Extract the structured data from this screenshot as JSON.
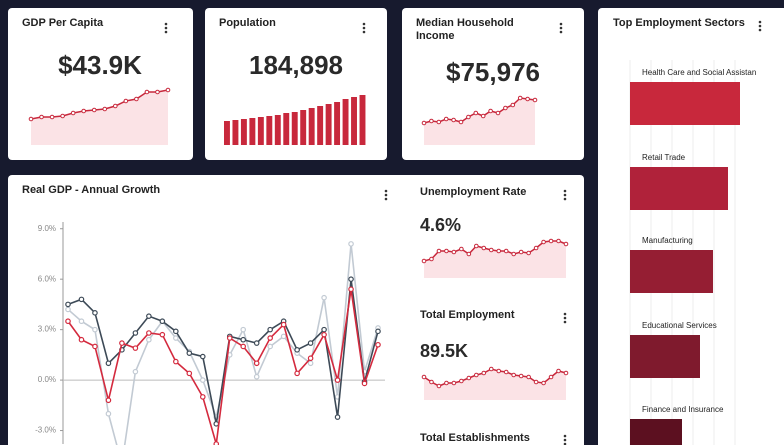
{
  "chart_data": [
    {
      "type": "line",
      "title": "GDP Per Capita",
      "headline": "$43.9K",
      "color": "#c8283c",
      "values": [
        31,
        33,
        33,
        34,
        37,
        39,
        40,
        41,
        44,
        49,
        51,
        58,
        58,
        60
      ]
    },
    {
      "type": "bar",
      "title": "Population",
      "headline": "184,898",
      "color": "#c8283c",
      "values": [
        24,
        25,
        26,
        27,
        28,
        29,
        30,
        32,
        33,
        35,
        37,
        39,
        41,
        43,
        46,
        48,
        50
      ]
    },
    {
      "type": "line",
      "title": "Median Household Income",
      "headline": "$75,976",
      "color": "#c8283c",
      "values": [
        27,
        29,
        28,
        31,
        30,
        28,
        33,
        37,
        34,
        39,
        37,
        42,
        45,
        52,
        51,
        50
      ]
    },
    {
      "type": "hbar",
      "title": "Top Employment Sectors",
      "categories": [
        "Health Care and Social Assistan",
        "Retail Trade",
        "Manufacturing",
        "Educational Services",
        "Finance and Insurance"
      ],
      "values": [
        110,
        98,
        83,
        70,
        52
      ],
      "colors": [
        "#c8283c",
        "#b0223a",
        "#951e33",
        "#7f1a2d",
        "#5c1020"
      ]
    },
    {
      "type": "multiline",
      "title": "Real GDP - Annual Growth",
      "ylim": [
        -3.8,
        9.4
      ],
      "yticks": [
        {
          "value": 9,
          "label": "9.0%"
        },
        {
          "value": 6,
          "label": "6.0%"
        },
        {
          "value": 3,
          "label": "3.0%"
        },
        {
          "value": 0,
          "label": "0.0%"
        },
        {
          "value": -3,
          "label": "-3.0%"
        }
      ],
      "series": [
        {
          "color": "#c2cad3",
          "values": [
            4.2,
            3.5,
            3.0,
            -2.0,
            -5.0,
            0.5,
            2.4,
            3.5,
            2.5,
            1.7,
            0.0,
            -2.2,
            1.5,
            3.0,
            0.2,
            2.0,
            2.6,
            1.6,
            1.0,
            4.9,
            -1.0,
            8.1,
            0.5,
            3.1
          ]
        },
        {
          "color": "#3d4a57",
          "values": [
            4.5,
            4.8,
            4.0,
            1.0,
            1.8,
            2.8,
            3.8,
            3.5,
            2.9,
            1.6,
            1.4,
            -2.6,
            2.6,
            2.4,
            2.2,
            3.0,
            3.5,
            1.8,
            2.2,
            3.0,
            -2.2,
            6.0,
            -0.1,
            2.9
          ]
        },
        {
          "color": "#d42a3e",
          "values": [
            3.5,
            2.4,
            2.0,
            -1.2,
            2.2,
            1.9,
            2.8,
            2.7,
            1.1,
            0.4,
            -1.0,
            -3.8,
            2.5,
            2.0,
            1.0,
            2.5,
            3.3,
            0.4,
            1.3,
            2.7,
            0.0,
            5.4,
            -0.2,
            2.1
          ]
        }
      ]
    },
    {
      "type": "line",
      "title": "Unemployment Rate",
      "headline": "4.6%",
      "color": "#c8283c",
      "values": [
        19,
        21,
        29,
        29,
        28,
        31,
        26,
        34,
        32,
        30,
        29,
        29,
        26,
        28,
        27,
        32,
        38,
        39,
        39,
        36
      ]
    },
    {
      "type": "line",
      "title": "Total Employment",
      "headline": "89.5K",
      "color": "#c8283c",
      "values": [
        23,
        18,
        14,
        17,
        17,
        19,
        22,
        25,
        27,
        31,
        29,
        28,
        25,
        24,
        23,
        18,
        17,
        23,
        29,
        27
      ]
    },
    {
      "title": "Total Establishments"
    }
  ]
}
